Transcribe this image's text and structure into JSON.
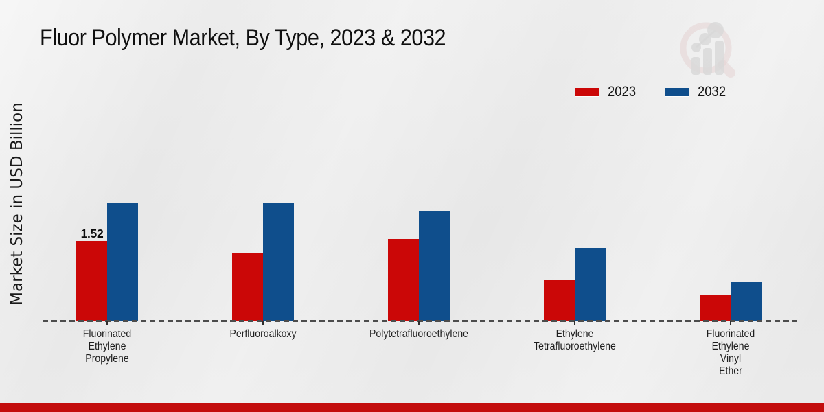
{
  "header": {
    "title": "Fluor Polymer Market, By Type, 2023 & 2032"
  },
  "colors": {
    "series_2023": "#cb0707",
    "series_2032": "#0f4e8c",
    "footer_accent": "#c30d0d",
    "background": "#e9e9e9",
    "axis_dash": "#4c4c4c"
  },
  "chart_data": {
    "type": "bar",
    "title": "Fluor Polymer Market, By Type, 2023 & 2032",
    "xlabel": "",
    "ylabel": "Market Size in USD Billion",
    "categories": [
      "Fluorinated Ethylene Propylene",
      "Perfluoroalkoxy",
      "Polytetrafluoroethylene",
      "Ethylene Tetrafluoroethylene",
      "Fluorinated Ethylene Vinyl Ether"
    ],
    "series": [
      {
        "name": "2023",
        "color": "#cb0707",
        "values": [
          1.52,
          1.3,
          1.56,
          0.78,
          0.5
        ]
      },
      {
        "name": "2032",
        "color": "#0f4e8c",
        "values": [
          2.23,
          2.24,
          2.08,
          1.39,
          0.74
        ]
      }
    ],
    "annotations": [
      {
        "text": "1.52",
        "series": "2023",
        "category_index": 0
      }
    ],
    "legend_position": "top-right",
    "grid": false,
    "y_axis_ticks_visible": false,
    "baseline_style": "dashed",
    "ylim": [
      0,
      2.6
    ]
  },
  "branding": {
    "logo_name": "market-research-future-watermark"
  }
}
